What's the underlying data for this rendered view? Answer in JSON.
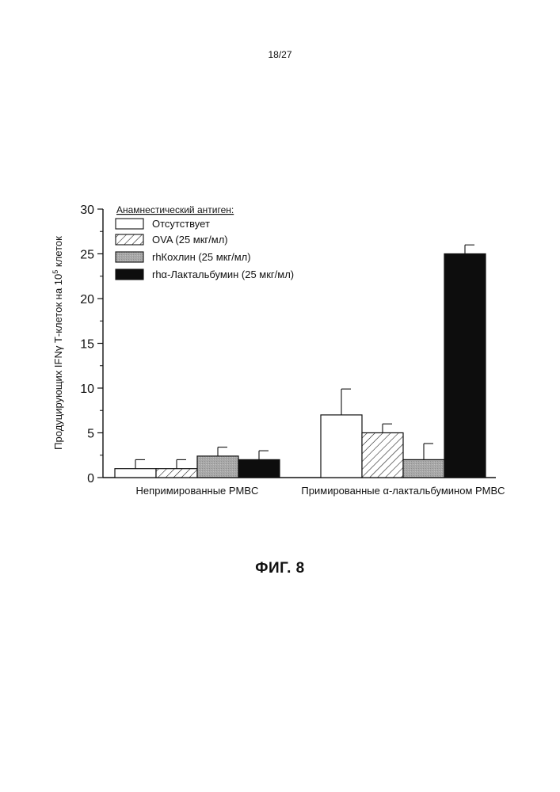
{
  "page": {
    "page_number": "18/27",
    "figure_caption": "ФИГ. 8"
  },
  "chart_data": {
    "type": "bar",
    "title": "",
    "ylabel_main": "Продуцирующих IFNγ Т-клеток на 10",
    "ylabel_sup": "5",
    "ylabel_tail": " клеток",
    "ylim": [
      0,
      30
    ],
    "yticks": [
      "0",
      "5",
      "10",
      "15",
      "20",
      "25",
      "30"
    ],
    "categories": [
      "Непримированные PMBC",
      "Примированные α-лактальбумином PMBC"
    ],
    "legend_title": "Анамнестический антиген:",
    "legend_position": "top-left",
    "series": [
      {
        "name": "Отсутствует",
        "values": [
          1.0,
          7.0
        ],
        "errors": [
          1.0,
          2.9
        ],
        "fill": "white"
      },
      {
        "name": "OVA (25 мкг/мл)",
        "values": [
          1.0,
          5.0
        ],
        "errors": [
          1.0,
          1.0
        ],
        "fill": "hatch"
      },
      {
        "name": "rhКохлин (25 мкг/мл)",
        "values": [
          2.4,
          2.0
        ],
        "errors": [
          1.0,
          1.8
        ],
        "fill": "gray"
      },
      {
        "name": "rhα-Лактальбумин (25 мкг/мл)",
        "values": [
          2.0,
          25.0
        ],
        "errors": [
          1.0,
          1.0
        ],
        "fill": "black"
      }
    ],
    "colors": {
      "white": "#ffffff",
      "gray": "#a8a8a8",
      "black": "#0d0d0d",
      "outline": "#111111"
    }
  }
}
